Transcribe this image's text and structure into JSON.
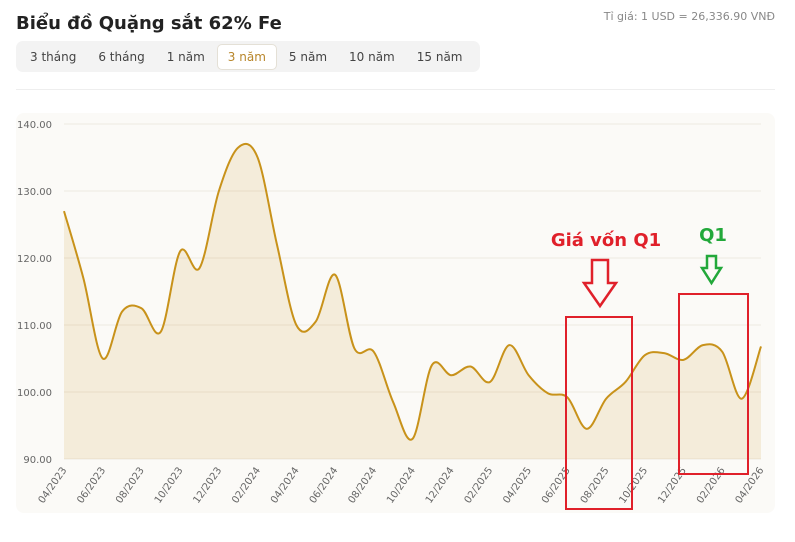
{
  "header": {
    "title": "Biểu đồ Quặng sắt 62% Fe",
    "rate": "Tỉ giá: 1 USD = 26,336.90 VNĐ",
    "tabs": [
      "3 tháng",
      "6 tháng",
      "1 năm",
      "3 năm",
      "5 năm",
      "10 năm",
      "15 năm"
    ],
    "active_tab": 3
  },
  "chart_data": {
    "type": "area",
    "categories": [
      "04/2023",
      null,
      "06/2023",
      null,
      "08/2023",
      null,
      "10/2023",
      null,
      "12/2023",
      null,
      "02/2024",
      null,
      "04/2024",
      null,
      "06/2024",
      null,
      "08/2024",
      null,
      "10/2024",
      null,
      "12/2024",
      null,
      "02/2025",
      null,
      "04/2025",
      null,
      "06/2025",
      null,
      "08/2025",
      null,
      "10/2025",
      null,
      "12/2025",
      null,
      "02/2026",
      null,
      "04/2026"
    ],
    "values": [
      127,
      117,
      105,
      112,
      112.5,
      109,
      121,
      118.5,
      130,
      136.5,
      135,
      122,
      110,
      110.5,
      117.5,
      106.5,
      106,
      98.5,
      93,
      104,
      102.5,
      103.8,
      101.5,
      107,
      102.5,
      99.8,
      99.2,
      94.5,
      99,
      101.5,
      105.5,
      105.8,
      104.8,
      107,
      106,
      99,
      106.8
    ],
    "color": "#c8921a",
    "ylim": [
      90,
      140
    ],
    "yticks": [
      {
        "value": 90,
        "label": "90.00"
      },
      {
        "value": 100,
        "label": "100.00"
      },
      {
        "value": 110,
        "label": "110.00"
      },
      {
        "value": 120,
        "label": "120.00"
      },
      {
        "value": 130,
        "label": "130.00"
      },
      {
        "value": 140,
        "label": "140.00"
      }
    ],
    "grid": true,
    "annotations": [
      {
        "text": "Giá vốn Q1",
        "color": "#e0202a"
      },
      {
        "text": "Q1",
        "color": "#22a83a"
      }
    ]
  }
}
